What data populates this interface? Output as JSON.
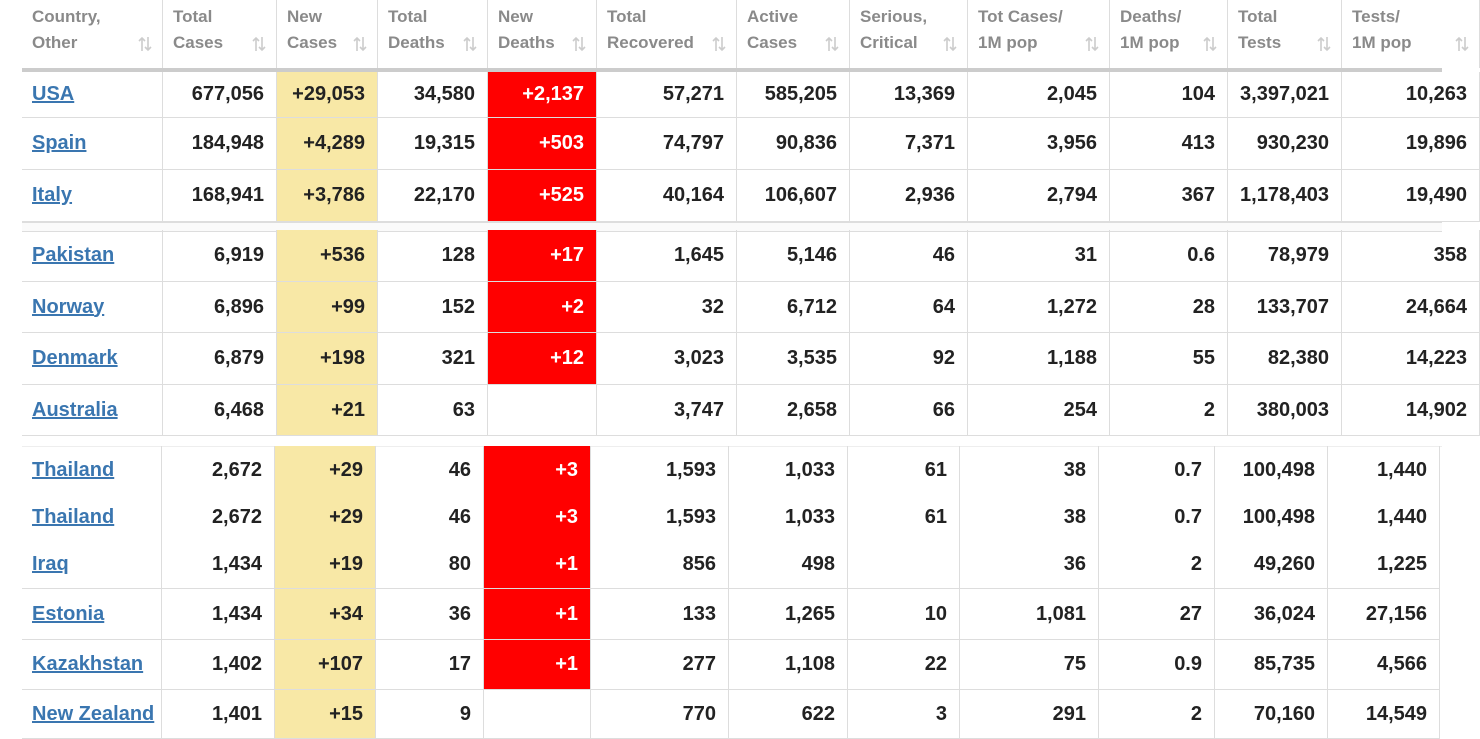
{
  "table": {
    "columns": [
      [
        "Country,",
        "Other"
      ],
      [
        "Total",
        "Cases"
      ],
      [
        "New",
        "Cases"
      ],
      [
        "Total",
        "Deaths"
      ],
      [
        "New",
        "Deaths"
      ],
      [
        "Total",
        "Recovered"
      ],
      [
        "Active",
        "Cases"
      ],
      [
        "Serious,",
        "Critical"
      ],
      [
        "Tot Cases/",
        "1M pop"
      ],
      [
        "Deaths/",
        "1M pop"
      ],
      [
        "Total",
        "Tests"
      ],
      [
        "Tests/",
        "1M pop"
      ]
    ],
    "rows": [
      [
        "USA",
        "677,056",
        "+29,053",
        "34,580",
        "+2,137",
        "57,271",
        "585,205",
        "13,369",
        "2,045",
        "104",
        "3,397,021",
        "10,263"
      ],
      [
        "Spain",
        "184,948",
        "+4,289",
        "19,315",
        "+503",
        "74,797",
        "90,836",
        "7,371",
        "3,956",
        "413",
        "930,230",
        "19,896"
      ],
      [
        "Italy",
        "168,941",
        "+3,786",
        "22,170",
        "+525",
        "40,164",
        "106,607",
        "2,936",
        "2,794",
        "367",
        "1,178,403",
        "19,490"
      ],
      [
        "Pakistan",
        "6,919",
        "+536",
        "128",
        "+17",
        "1,645",
        "5,146",
        "46",
        "31",
        "0.6",
        "78,979",
        "358"
      ],
      [
        "Norway",
        "6,896",
        "+99",
        "152",
        "+2",
        "32",
        "6,712",
        "64",
        "1,272",
        "28",
        "133,707",
        "24,664"
      ],
      [
        "Denmark",
        "6,879",
        "+198",
        "321",
        "+12",
        "3,023",
        "3,535",
        "92",
        "1,188",
        "55",
        "82,380",
        "14,223"
      ],
      [
        "Australia",
        "6,468",
        "+21",
        "63",
        null,
        "3,747",
        "2,658",
        "66",
        "254",
        "2",
        "380,003",
        "14,902"
      ],
      [
        "Thailand",
        "2,672",
        "+29",
        "46",
        "+3",
        "1,593",
        "1,033",
        "61",
        "38",
        "0.7",
        "100,498",
        "1,440"
      ],
      [
        "Thailand",
        "2,672",
        "+29",
        "46",
        "+3",
        "1,593",
        "1,033",
        "61",
        "38",
        "0.7",
        "100,498",
        "1,440"
      ],
      [
        "Iraq",
        "1,434",
        "+19",
        "80",
        "+1",
        "856",
        "498",
        null,
        "36",
        "2",
        "49,260",
        "1,225"
      ],
      [
        "Estonia",
        "1,434",
        "+34",
        "36",
        "+1",
        "133",
        "1,265",
        "10",
        "1,081",
        "27",
        "36,024",
        "27,156"
      ],
      [
        "Kazakhstan",
        "1,402",
        "+107",
        "17",
        "+1",
        "277",
        "1,108",
        "22",
        "75",
        "0.9",
        "85,735",
        "4,566"
      ],
      [
        "New Zealand",
        "1,401",
        "+15",
        "9",
        null,
        "770",
        "622",
        "3",
        "291",
        "2",
        "70,160",
        "14,549"
      ]
    ]
  }
}
